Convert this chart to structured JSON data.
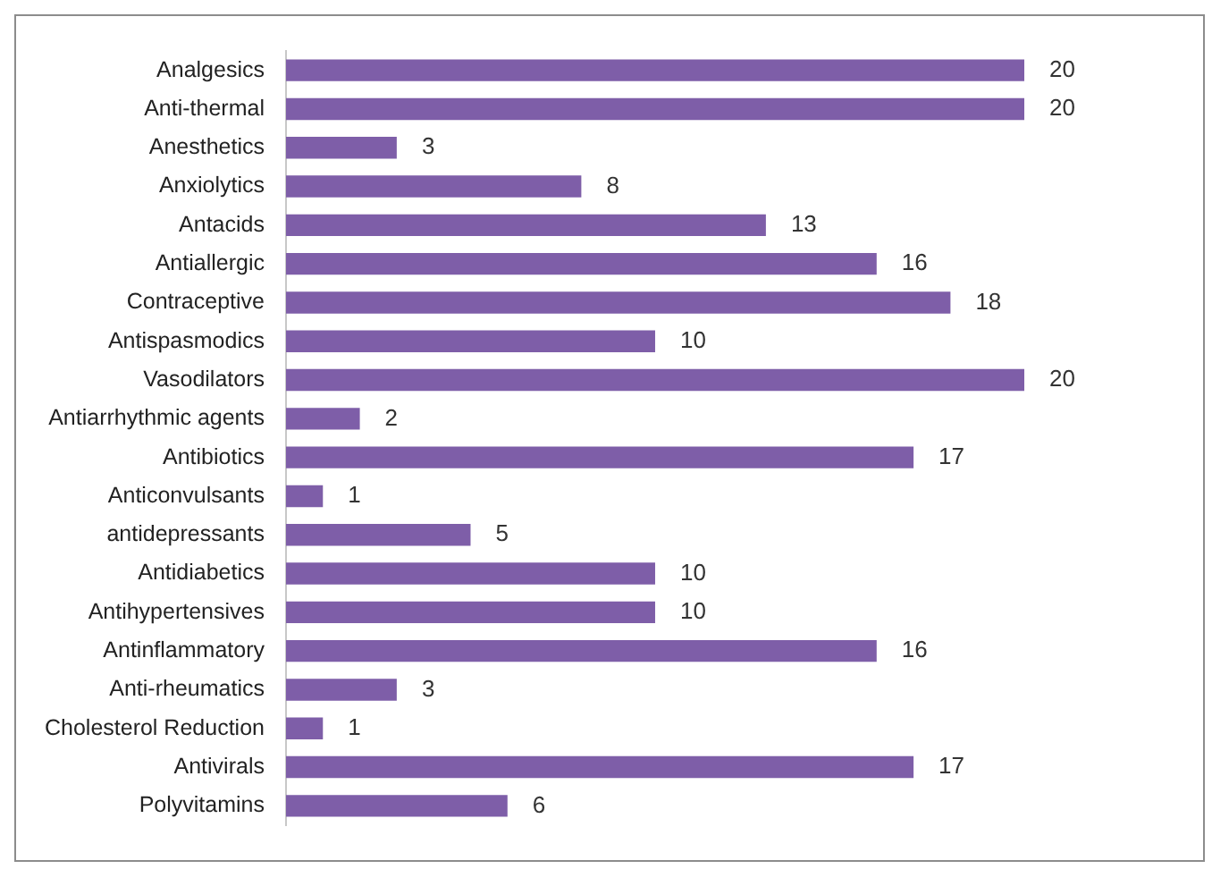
{
  "chart_data": {
    "type": "bar",
    "orientation": "horizontal",
    "categories": [
      "Analgesics",
      "Anti-thermal",
      "Anesthetics",
      "Anxiolytics",
      "Antacids",
      "Antiallergic",
      "Contraceptive",
      "Antispasmodics",
      "Vasodilators",
      "Antiarrhythmic agents",
      "Antibiotics",
      "Anticonvulsants",
      "antidepressants",
      "Antidiabetics",
      "Antihypertensives",
      "Antinflammatory",
      "Anti-rheumatics",
      "Cholesterol Reduction",
      "Antivirals",
      "Polyvitamins"
    ],
    "values": [
      20,
      20,
      3,
      8,
      13,
      16,
      18,
      10,
      20,
      2,
      17,
      1,
      5,
      10,
      10,
      16,
      3,
      1,
      17,
      6
    ],
    "color": "#7e5ea8",
    "data_labels": true
  }
}
